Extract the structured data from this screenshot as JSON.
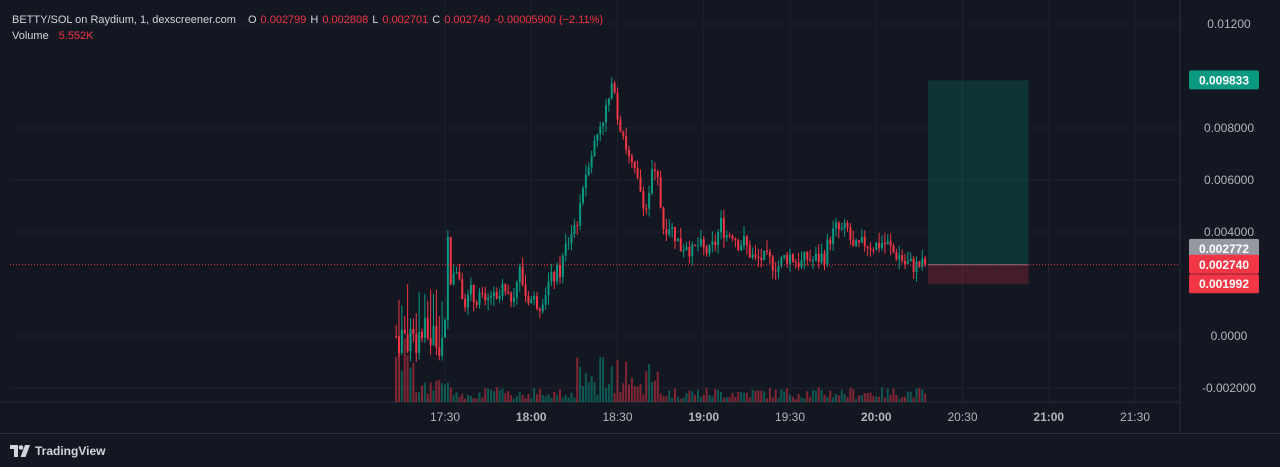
{
  "header": {
    "symbol": "BETTY/SOL on Raydium, 1, dexscreener.com",
    "open_label": "O",
    "open": "0.002799",
    "high_label": "H",
    "high": "0.002808",
    "low_label": "L",
    "low": "0.002701",
    "close_label": "C",
    "close": "0.002740",
    "change": "-0.00005900 (−2.11%)",
    "volume_label": "Volume",
    "volume": "5.552K"
  },
  "price_axis": {
    "ticks": [
      {
        "value": 0.012,
        "label": "0.01200"
      },
      {
        "value": 0.008,
        "label": "0.008000"
      },
      {
        "value": 0.006,
        "label": "0.006000"
      },
      {
        "value": 0.004,
        "label": "0.004000"
      },
      {
        "value": 0.0,
        "label": "0.0000"
      },
      {
        "value": -0.002,
        "label": "-0.002000"
      }
    ],
    "badges": [
      {
        "value": 0.009833,
        "label": "0.009833",
        "color": "#089981",
        "text_color": "#ffffff"
      },
      {
        "value": 0.002772,
        "label": "0.002772",
        "color": "#9598a1",
        "text_color": "#ffffff"
      },
      {
        "value": 0.00274,
        "label": "0.002740",
        "color": "#f23645",
        "text_color": "#ffffff"
      },
      {
        "value": 0.001992,
        "label": "0.001992",
        "color": "#f23645",
        "text_color": "#ffffff"
      }
    ]
  },
  "time_axis": {
    "ticks": [
      {
        "minutes": 0,
        "label": "17:30",
        "bold": false
      },
      {
        "minutes": 30,
        "label": "18:00",
        "bold": true
      },
      {
        "minutes": 60,
        "label": "18:30",
        "bold": false
      },
      {
        "minutes": 90,
        "label": "19:00",
        "bold": true
      },
      {
        "minutes": 120,
        "label": "19:30",
        "bold": false
      },
      {
        "minutes": 150,
        "label": "20:00",
        "bold": true
      },
      {
        "minutes": 180,
        "label": "20:30",
        "bold": false
      },
      {
        "minutes": 210,
        "label": "21:00",
        "bold": true
      },
      {
        "minutes": 240,
        "label": "21:30",
        "bold": false
      }
    ]
  },
  "chart_data": {
    "type": "candlestick",
    "pair": "BETTY/SOL",
    "interval_minutes": 1,
    "start_time": "17:20",
    "x_range": [
      "17:02",
      "21:45"
    ],
    "ylim": [
      -0.0025,
      0.0127
    ],
    "close_series_minutes": [
      0,
      1,
      2,
      3,
      4,
      6,
      8,
      10,
      12,
      14,
      16,
      18,
      20,
      22,
      24,
      26,
      28,
      30,
      33,
      36,
      38,
      40,
      42,
      44,
      46,
      48,
      50,
      52,
      54,
      56,
      58,
      59,
      60,
      62,
      64,
      66,
      68,
      70,
      72,
      74,
      76,
      78,
      80,
      82,
      84,
      86,
      88,
      90,
      92,
      94,
      96,
      98,
      100,
      102,
      104,
      106,
      108,
      110,
      112,
      114,
      116,
      118,
      120,
      122,
      124,
      126,
      128,
      130,
      132,
      134,
      136,
      138,
      140,
      142,
      144,
      146,
      148,
      150,
      152,
      154,
      156,
      158,
      160,
      162,
      164,
      166,
      167
    ],
    "close_series_values": [
      0.0,
      0.0035,
      0.0025,
      0.0019,
      0.0028,
      0.0022,
      0.0012,
      0.0014,
      0.0016,
      0.0011,
      0.0016,
      0.0012,
      0.0018,
      0.0013,
      0.0018,
      0.0025,
      0.0016,
      0.0014,
      0.0013,
      0.002,
      0.0023,
      0.0025,
      0.0034,
      0.004,
      0.0045,
      0.0058,
      0.0068,
      0.0074,
      0.0082,
      0.0087,
      0.0094,
      0.0097,
      0.0085,
      0.0078,
      0.0068,
      0.0062,
      0.0056,
      0.0049,
      0.0062,
      0.0059,
      0.0042,
      0.0043,
      0.0039,
      0.0034,
      0.0036,
      0.0032,
      0.0035,
      0.0033,
      0.0032,
      0.0036,
      0.0043,
      0.0039,
      0.004,
      0.0036,
      0.0036,
      0.0032,
      0.0029,
      0.003,
      0.0029,
      0.0028,
      0.0027,
      0.003,
      0.0031,
      0.0029,
      0.0028,
      0.003,
      0.0029,
      0.003,
      0.0031,
      0.0038,
      0.0041,
      0.004,
      0.0041,
      0.0033,
      0.0034,
      0.0036,
      0.0035,
      0.0035,
      0.0036,
      0.0035,
      0.0032,
      0.0031,
      0.0028,
      0.00274,
      0.0027,
      0.00272,
      0.00274
    ],
    "current_price": 0.00274,
    "position_tool": {
      "type": "long",
      "entry": 0.00274,
      "target": 0.009833,
      "stop": 0.001992,
      "start_minutes": 168,
      "end_minutes": 203
    },
    "up_color": "#089981",
    "down_color": "#f23645"
  },
  "branding": {
    "label": "TradingView"
  }
}
